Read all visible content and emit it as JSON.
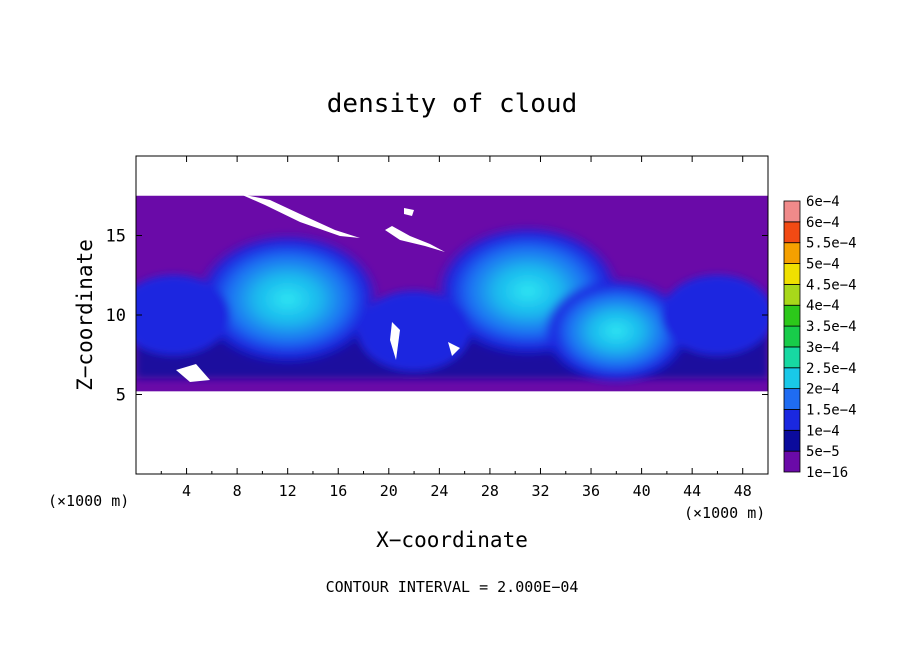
{
  "chart_data": {
    "type": "heatmap",
    "title": "density of cloud",
    "xlabel": "X−coordinate",
    "ylabel": "Z−coordinate",
    "x_unit_left": "(×1000 m)",
    "x_unit_right": "(×1000 m)",
    "xlim": [
      0,
      50
    ],
    "ylim": [
      0,
      20
    ],
    "x_ticks": [
      4,
      8,
      12,
      16,
      20,
      24,
      28,
      32,
      36,
      40,
      44,
      48
    ],
    "x_tick_labels": [
      "4",
      "8",
      "12",
      "16",
      "20",
      "24",
      "28",
      "32",
      "36",
      "40",
      "44",
      "48"
    ],
    "y_ticks": [
      5,
      10,
      15
    ],
    "y_tick_labels": [
      "5",
      "10",
      "15"
    ],
    "footer": "CONTOUR INTERVAL = 2.000E−04",
    "field_extent": {
      "z_bottom": 5.2,
      "z_top": 17.5
    },
    "colorbar": {
      "levels": [
        "1e−16",
        "5e−5",
        "1e−4",
        "1.5e−4",
        "2e−4",
        "2.5e−4",
        "3e−4",
        "3.5e−4",
        "4e−4",
        "4.5e−4",
        "5e−4",
        "5.5e−4",
        "6e−4"
      ],
      "colors": [
        "#6a0aa8",
        "#0b0b9c",
        "#1a28e0",
        "#1f6cf2",
        "#19c8e8",
        "#17d9a2",
        "#18cc4a",
        "#2cc81a",
        "#a8d81a",
        "#f0e000",
        "#f5a000",
        "#f24a14",
        "#f08a8a"
      ]
    },
    "cloud_cells": [
      {
        "x": 12,
        "z": 11,
        "level": 4
      },
      {
        "x": 31,
        "z": 11.5,
        "level": 4
      },
      {
        "x": 38,
        "z": 9,
        "level": 3
      },
      {
        "x": 46,
        "z": 10,
        "level": 2
      },
      {
        "x": 3,
        "z": 10,
        "level": 2
      },
      {
        "x": 22,
        "z": 9,
        "level": 2
      }
    ]
  }
}
